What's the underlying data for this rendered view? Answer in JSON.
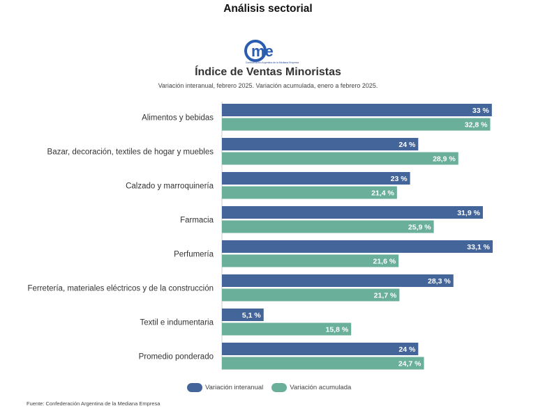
{
  "page": {
    "section_title": "Análisis sectorial",
    "logo": {
      "text": "Ame",
      "tagline": "Confederación Argentina de la Mediana Empresa",
      "color": "#2a5db0"
    },
    "source": "Fuente: Confederación Argentina de la Mediana Empresa"
  },
  "chart_data": {
    "type": "bar",
    "orientation": "horizontal",
    "title": "Índice de Ventas Minoristas",
    "subtitle": "Variación interanual, febrero 2025. Variación acumulada, enero a febrero 2025.",
    "categories": [
      "Alimentos y bebidas",
      "Bazar, decoración, textiles de hogar y muebles",
      "Calzado y marroquinería",
      "Farmacia",
      "Perfumería",
      "Ferretería, materiales eléctricos y de la construcción",
      "Textil e indumentaria",
      "Promedio ponderado"
    ],
    "series": [
      {
        "name": "Variación interanual",
        "color": "#44659a",
        "values": [
          33,
          24,
          23,
          31.9,
          33.1,
          28.3,
          5.1,
          24
        ],
        "labels": [
          "33 %",
          "24 %",
          "23 %",
          "31,9 %",
          "33,1 %",
          "28,3 %",
          "5,1 %",
          "24 %"
        ]
      },
      {
        "name": "Variación acumulada",
        "color": "#6aaf99",
        "values": [
          32.8,
          28.9,
          21.4,
          25.9,
          21.6,
          21.7,
          15.8,
          24.7
        ],
        "labels": [
          "32,8 %",
          "28,9 %",
          "21,4 %",
          "25,9 %",
          "21,6 %",
          "21,7 %",
          "15,8 %",
          "24,7 %"
        ]
      }
    ],
    "xlim": [
      0,
      33.1
    ],
    "grid": false,
    "legend_position": "bottom"
  }
}
